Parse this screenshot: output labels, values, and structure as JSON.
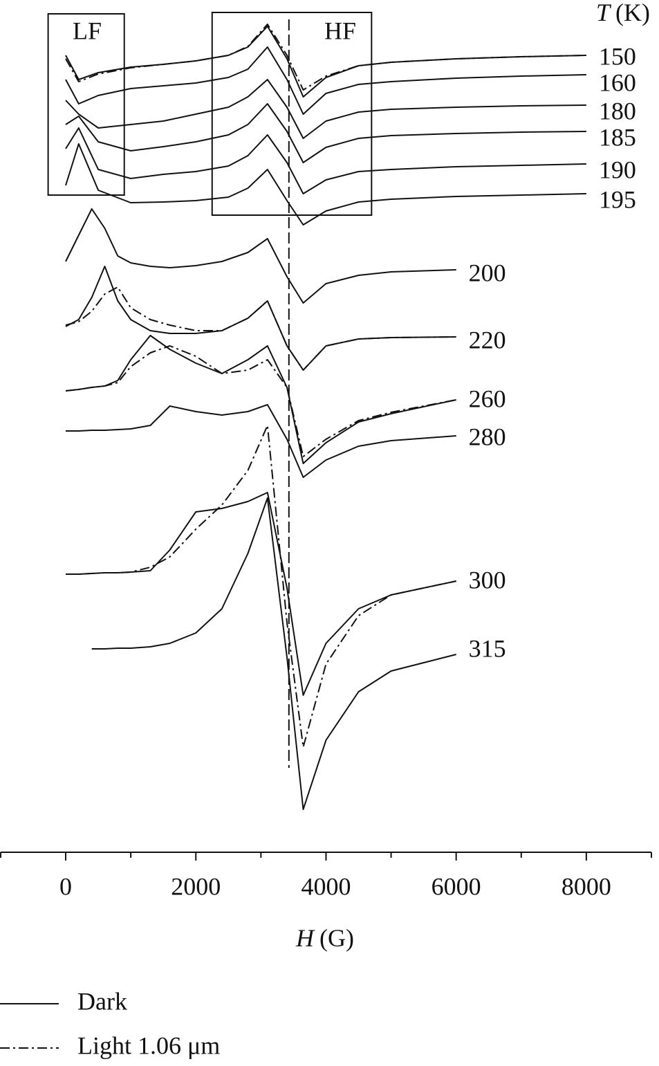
{
  "chart_data": {
    "type": "line",
    "x_label_symbol": "H",
    "x_label_unit": "(G)",
    "series_label_symbol": "T",
    "series_label_unit": "(K)",
    "xlim": [
      -1000,
      9000
    ],
    "xticks": [
      0,
      2000,
      4000,
      6000,
      8000
    ],
    "xminor_ticks": [
      -1000,
      1000,
      3000,
      5000,
      7000,
      9000
    ],
    "reference_x": 3430,
    "boxes": [
      {
        "label": "LF",
        "xlim": [
          -270,
          900
        ]
      },
      {
        "label": "HF",
        "xlim": [
          2250,
          4700
        ]
      }
    ],
    "legend": {
      "dark": "Dark",
      "light": "Light 1.06 μm"
    },
    "spectra": [
      {
        "label": "150",
        "x": [
          0,
          200,
          500,
          1000,
          1500,
          2000,
          2500,
          2800,
          3100,
          3400,
          3650,
          4000,
          4500,
          5000,
          6000,
          7000,
          8000
        ],
        "dark": [
          0,
          -35,
          -25,
          -17,
          -13,
          -8,
          0,
          12,
          42,
          -5,
          -60,
          -32,
          -15,
          -10,
          -5,
          -2,
          0
        ],
        "light": [
          -5,
          -38,
          -27,
          -18,
          -13,
          -8,
          0,
          13,
          45,
          0,
          -50,
          -30,
          -15,
          -10,
          -5,
          -2,
          0
        ]
      },
      {
        "label": "160",
        "x": [
          0,
          200,
          500,
          1000,
          1500,
          2000,
          2500,
          2800,
          3100,
          3400,
          3650,
          4000,
          4500,
          5000,
          6000,
          7000,
          8000
        ],
        "dark": [
          -7,
          -42,
          -30,
          -20,
          -16,
          -12,
          -4,
          8,
          40,
          -7,
          -57,
          -27,
          -14,
          -10,
          -5,
          -2,
          0
        ]
      },
      {
        "label": "180",
        "x": [
          0,
          200,
          500,
          1000,
          1500,
          2000,
          2500,
          2800,
          3100,
          3400,
          3650,
          4000,
          4500,
          5000,
          6000,
          7000,
          8000
        ],
        "dark": [
          7,
          -13,
          -33,
          -28,
          -23,
          -13,
          -3,
          12,
          37,
          -3,
          -48,
          -23,
          -10,
          -6,
          -3,
          -1,
          0
        ]
      },
      {
        "label": "185",
        "x": [
          0,
          200,
          500,
          1000,
          1500,
          2000,
          2500,
          2800,
          3100,
          3400,
          3650,
          4000,
          4500,
          5000,
          6000,
          7000,
          8000
        ],
        "dark": [
          10,
          22,
          -15,
          -28,
          -22,
          -15,
          -5,
          10,
          40,
          0,
          -45,
          -23,
          -10,
          -6,
          -3,
          -1,
          0
        ]
      },
      {
        "label": "190",
        "x": [
          0,
          200,
          500,
          1000,
          1500,
          2000,
          2500,
          2800,
          3100,
          3400,
          3650,
          4000,
          4500,
          5000,
          6000,
          7000,
          8000
        ],
        "dark": [
          22,
          52,
          -8,
          -21,
          -15,
          -11,
          -3,
          12,
          42,
          2,
          -43,
          -23,
          -11,
          -8,
          -4,
          -2,
          0
        ]
      },
      {
        "label": "195",
        "x": [
          0,
          200,
          500,
          1000,
          1500,
          2000,
          2500,
          2800,
          3100,
          3400,
          3650,
          4000,
          4500,
          5000,
          6000,
          7000,
          8000
        ],
        "dark": [
          12,
          72,
          5,
          -13,
          -12,
          -10,
          -5,
          8,
          35,
          -10,
          -45,
          -25,
          -12,
          -8,
          -4,
          -2,
          0
        ]
      },
      {
        "label": "200",
        "x": [
          0,
          200,
          400,
          600,
          800,
          1000,
          1300,
          1600,
          2000,
          2400,
          2800,
          3100,
          3400,
          3650,
          4000,
          4500,
          5000,
          6000
        ],
        "dark": [
          12,
          50,
          88,
          60,
          20,
          10,
          5,
          3,
          6,
          12,
          25,
          45,
          -10,
          -48,
          -20,
          -8,
          -3,
          0
        ]
      },
      {
        "label": "220",
        "x": [
          0,
          200,
          400,
          600,
          800,
          1000,
          1300,
          1600,
          2000,
          2400,
          2800,
          3100,
          3400,
          3650,
          4000,
          4500,
          5000,
          6000
        ],
        "dark": [
          15,
          25,
          57,
          102,
          52,
          25,
          9,
          5,
          5,
          9,
          27,
          52,
          -13,
          -48,
          -13,
          -3,
          -1,
          0
        ],
        "light": [
          17,
          22,
          37,
          62,
          72,
          42,
          25,
          17,
          9,
          9,
          27,
          52,
          -13,
          -48,
          -13,
          -3,
          -1,
          0
        ]
      },
      {
        "label": "260",
        "x": [
          0,
          200,
          400,
          600,
          800,
          1000,
          1300,
          1600,
          2000,
          2400,
          2800,
          3100,
          3400,
          3650,
          4000,
          4500,
          5000,
          6000
        ],
        "dark": [
          13,
          15,
          18,
          20,
          28,
          58,
          93,
          73,
          53,
          38,
          58,
          78,
          18,
          -92,
          -62,
          -32,
          -20,
          0
        ],
        "light": [
          13,
          15,
          18,
          20,
          25,
          48,
          68,
          78,
          63,
          38,
          43,
          58,
          18,
          -82,
          -57,
          -30,
          -18,
          0
        ]
      },
      {
        "label": "280",
        "x": [
          0,
          200,
          400,
          600,
          800,
          1000,
          1300,
          1600,
          2000,
          2400,
          2800,
          3100,
          3400,
          3650,
          4000,
          4500,
          5000,
          6000
        ],
        "dark": [
          7,
          7,
          8,
          8,
          9,
          10,
          15,
          43,
          35,
          30,
          35,
          45,
          -5,
          -60,
          -35,
          -15,
          -7,
          0
        ]
      },
      {
        "label": "300",
        "x": [
          0,
          200,
          400,
          600,
          800,
          1000,
          1300,
          1600,
          2000,
          2400,
          2800,
          3100,
          3400,
          3650,
          4000,
          4500,
          5000,
          6000
        ],
        "dark": [
          10,
          10,
          11,
          12,
          12,
          13,
          15,
          45,
          100,
          105,
          115,
          128,
          -10,
          -165,
          -90,
          -40,
          -20,
          0
        ],
        "light": [
          10,
          10,
          11,
          12,
          12,
          13,
          20,
          35,
          75,
          110,
          160,
          225,
          -60,
          -240,
          -120,
          -50,
          -20,
          0
        ]
      },
      {
        "label": "315",
        "x": [
          0,
          200,
          400,
          600,
          800,
          1000,
          1300,
          1600,
          2000,
          2400,
          2800,
          3100,
          3400,
          3650,
          4000,
          4500,
          5000,
          6000
        ],
        "dark": [
          null,
          null,
          8,
          8,
          9,
          9,
          11,
          16,
          31,
          66,
          146,
          226,
          -4,
          -224,
          -124,
          -54,
          -24,
          0
        ]
      }
    ]
  }
}
